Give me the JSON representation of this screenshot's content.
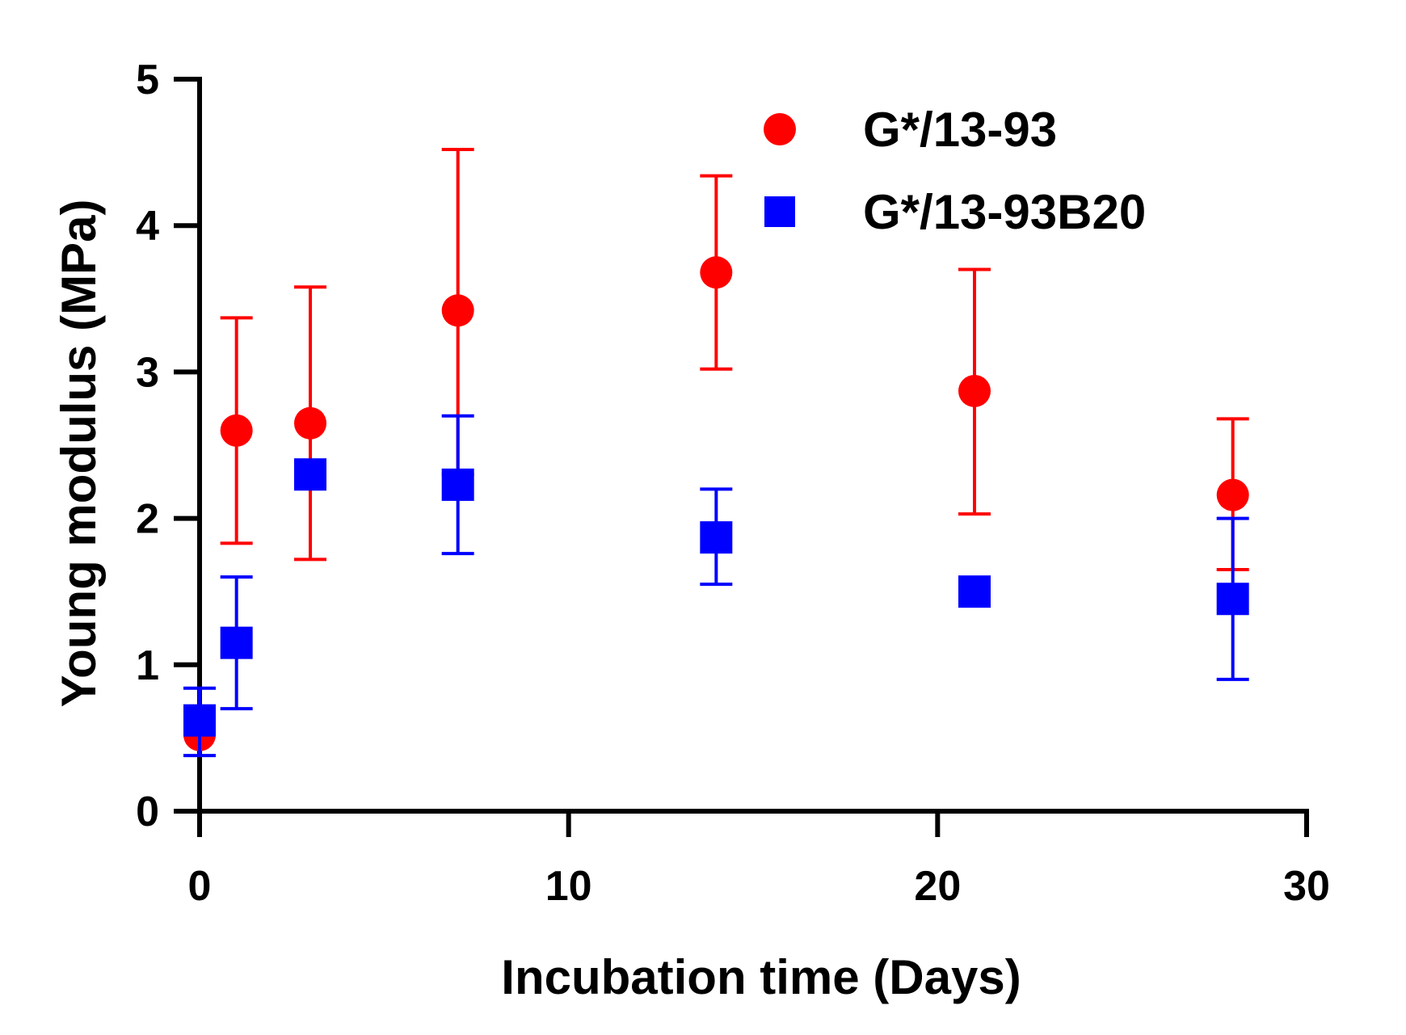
{
  "chart_data": {
    "type": "scatter",
    "title": "",
    "xlabel": "Incubation time (Days)",
    "ylabel": "Young modulus (MPa)",
    "xlim": [
      0,
      30
    ],
    "ylim": [
      0,
      5
    ],
    "xticks": [
      0,
      10,
      20,
      30
    ],
    "yticks": [
      0,
      1,
      2,
      3,
      4,
      5
    ],
    "grid": false,
    "legend_position": "top-right",
    "series": [
      {
        "name": "G*/13-93",
        "color": "#ff0000",
        "marker": "circle",
        "points": [
          {
            "x": 0,
            "y": 0.52,
            "err_low": 0.52,
            "err_high": 0.52
          },
          {
            "x": 1,
            "y": 2.6,
            "err_low": 1.83,
            "err_high": 3.37
          },
          {
            "x": 3,
            "y": 2.65,
            "err_low": 1.72,
            "err_high": 3.58
          },
          {
            "x": 7,
            "y": 3.42,
            "err_low": 2.3,
            "err_high": 4.52
          },
          {
            "x": 14,
            "y": 3.68,
            "err_low": 3.02,
            "err_high": 4.34
          },
          {
            "x": 21,
            "y": 2.87,
            "err_low": 2.03,
            "err_high": 3.7
          },
          {
            "x": 28,
            "y": 2.16,
            "err_low": 1.65,
            "err_high": 2.68
          }
        ]
      },
      {
        "name": "G*/13-93B20",
        "color": "#0000ff",
        "marker": "square",
        "points": [
          {
            "x": 0,
            "y": 0.62,
            "err_low": 0.38,
            "err_high": 0.84
          },
          {
            "x": 1,
            "y": 1.15,
            "err_low": 0.7,
            "err_high": 1.6
          },
          {
            "x": 3,
            "y": 2.3,
            "err_low": 2.3,
            "err_high": 2.3
          },
          {
            "x": 7,
            "y": 2.23,
            "err_low": 1.76,
            "err_high": 2.7
          },
          {
            "x": 14,
            "y": 1.87,
            "err_low": 1.55,
            "err_high": 2.2
          },
          {
            "x": 21,
            "y": 1.5,
            "err_low": 1.5,
            "err_high": 1.5
          },
          {
            "x": 28,
            "y": 1.45,
            "err_low": 0.9,
            "err_high": 2.0
          }
        ]
      }
    ]
  }
}
